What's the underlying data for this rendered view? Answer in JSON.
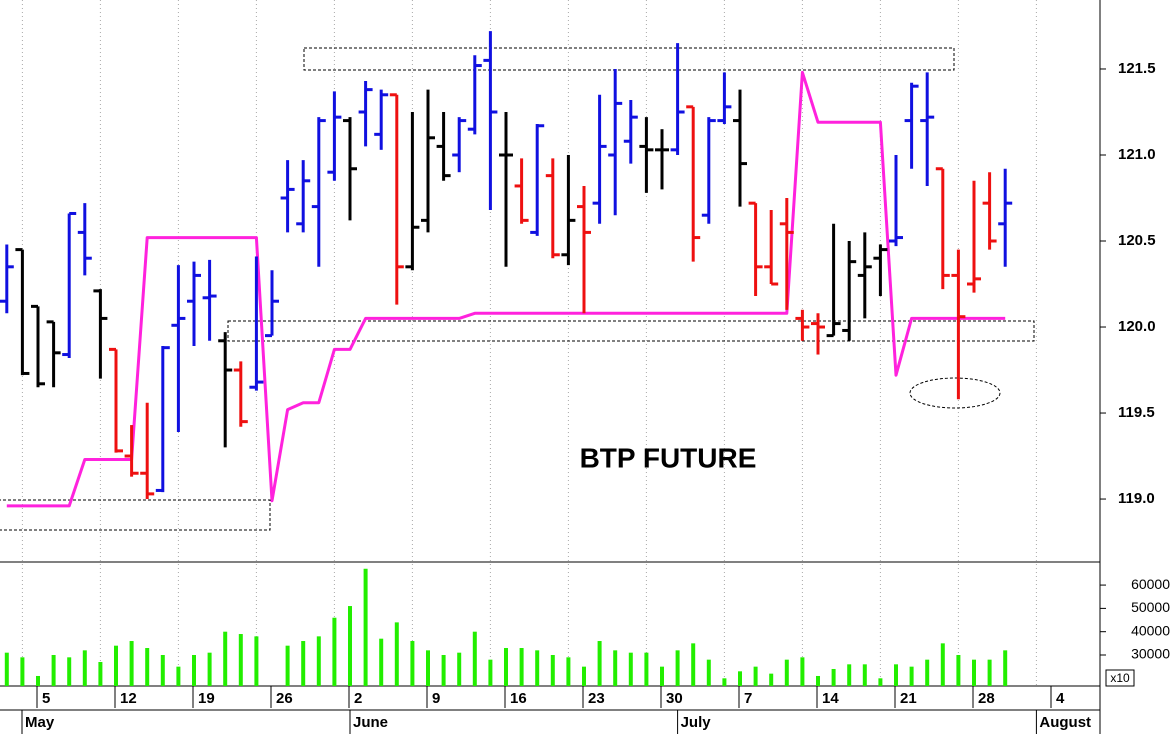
{
  "chart_data": [
    {
      "type": "ohlc",
      "title": "BTP FUTURE",
      "categories": [
        null,
        null,
        "5",
        null,
        null,
        null,
        null,
        "12",
        null,
        null,
        null,
        null,
        "19",
        null,
        null,
        null,
        null,
        "26",
        null,
        null,
        null,
        null,
        "2",
        null,
        null,
        null,
        null,
        "9",
        null,
        null,
        null,
        null,
        "16",
        null,
        null,
        null,
        null,
        "23",
        null,
        null,
        null,
        null,
        "30",
        null,
        null,
        null,
        null,
        "7",
        null,
        null,
        null,
        null,
        "14",
        null,
        null,
        null,
        null,
        "21",
        null,
        null,
        null,
        null,
        "28",
        null,
        null,
        null,
        null,
        "4",
        null,
        null
      ],
      "month_labels": [
        "May",
        null,
        null,
        null,
        null,
        null,
        null,
        null,
        null,
        null,
        null,
        null,
        null,
        null,
        null,
        null,
        null,
        null,
        null,
        null,
        null,
        null,
        "June",
        null,
        null,
        null,
        null,
        null,
        null,
        null,
        null,
        null,
        null,
        null,
        null,
        null,
        null,
        null,
        null,
        null,
        null,
        null,
        null,
        "July",
        null,
        null,
        null,
        null,
        null,
        null,
        null,
        null,
        null,
        null,
        null,
        null,
        null,
        null,
        null,
        null,
        null,
        null,
        null,
        null,
        null,
        null,
        "August",
        null,
        null,
        null
      ],
      "open": [
        120.15,
        120.45,
        120.12,
        120.03,
        119.84,
        120.55,
        120.21,
        119.87,
        119.25,
        119.15,
        119.05,
        120.01,
        120.15,
        120.17,
        119.92,
        119.75,
        119.65,
        119.95,
        120.75,
        120.6,
        120.7,
        120.9,
        121.2,
        121.25,
        121.12,
        121.35,
        120.35,
        120.62,
        121.05,
        121.0,
        121.15,
        121.55,
        121.0,
        120.82,
        120.55,
        120.88,
        120.42,
        120.7,
        120.72,
        121.0,
        121.08,
        121.05,
        121.03,
        121.03,
        121.28,
        120.65,
        121.2,
        121.2,
        120.72,
        120.35,
        120.6,
        120.05,
        120.02,
        119.95,
        119.98,
        120.3,
        120.4,
        120.5,
        121.2,
        121.2,
        120.92,
        120.3,
        120.25,
        120.72,
        120.6,
        null,
        null,
        null,
        null,
        null
      ],
      "high": [
        120.48,
        120.45,
        120.12,
        120.03,
        120.66,
        120.72,
        120.22,
        119.87,
        119.43,
        119.56,
        119.89,
        120.36,
        120.38,
        120.39,
        119.97,
        119.8,
        120.41,
        120.33,
        120.97,
        120.97,
        121.22,
        121.37,
        121.22,
        121.43,
        121.38,
        121.35,
        121.25,
        121.38,
        121.25,
        121.22,
        121.58,
        121.72,
        121.25,
        120.98,
        121.18,
        120.98,
        121.0,
        120.82,
        121.35,
        121.5,
        121.32,
        121.22,
        121.15,
        121.65,
        121.28,
        121.22,
        121.48,
        121.38,
        120.72,
        120.68,
        120.75,
        120.1,
        120.08,
        120.6,
        120.5,
        120.55,
        120.48,
        121.0,
        121.42,
        121.48,
        120.92,
        120.45,
        120.85,
        120.9,
        120.92,
        null,
        null,
        null,
        null,
        null
      ],
      "low": [
        120.08,
        119.72,
        119.65,
        119.65,
        119.82,
        120.3,
        119.7,
        119.27,
        119.13,
        119.0,
        119.04,
        119.39,
        119.89,
        119.92,
        119.3,
        119.42,
        119.63,
        119.95,
        120.55,
        120.55,
        120.35,
        120.85,
        120.62,
        121.05,
        121.03,
        120.13,
        120.33,
        120.55,
        120.85,
        120.9,
        121.12,
        120.68,
        120.35,
        120.6,
        120.53,
        120.4,
        120.36,
        120.08,
        120.6,
        120.65,
        120.95,
        120.78,
        120.8,
        121.0,
        120.38,
        120.6,
        121.18,
        120.7,
        120.18,
        120.25,
        120.1,
        119.92,
        119.84,
        119.95,
        119.92,
        120.05,
        120.18,
        120.47,
        120.92,
        120.82,
        120.22,
        119.58,
        120.2,
        120.45,
        120.35,
        null,
        null,
        null,
        null,
        null
      ],
      "close": [
        120.35,
        119.73,
        119.67,
        119.85,
        120.66,
        120.4,
        120.05,
        119.28,
        119.15,
        119.03,
        119.88,
        120.05,
        120.3,
        120.18,
        119.75,
        119.45,
        119.68,
        120.15,
        120.8,
        120.85,
        121.2,
        121.22,
        120.92,
        121.38,
        121.35,
        120.35,
        120.58,
        121.1,
        120.88,
        121.2,
        121.52,
        121.25,
        121.0,
        120.62,
        121.17,
        120.42,
        120.62,
        120.55,
        121.05,
        121.3,
        121.22,
        121.03,
        121.03,
        121.25,
        120.52,
        121.2,
        121.28,
        120.95,
        120.35,
        120.25,
        120.55,
        120.0,
        120.0,
        120.02,
        120.38,
        120.35,
        120.45,
        120.52,
        121.4,
        121.22,
        120.3,
        120.06,
        120.28,
        120.5,
        120.72,
        null,
        null,
        null,
        null,
        null
      ],
      "bar_colors": [
        "#1010e0",
        "#000000",
        "#000000",
        "#000000",
        "#1010e0",
        "#1010e0",
        "#000000",
        "#ee1010",
        "#ee1010",
        "#ee1010",
        "#1010e0",
        "#1010e0",
        "#1010e0",
        "#1010e0",
        "#000000",
        "#ee1010",
        "#1010e0",
        "#1010e0",
        "#1010e0",
        "#1010e0",
        "#1010e0",
        "#1010e0",
        "#000000",
        "#1010e0",
        "#1010e0",
        "#ee1010",
        "#000000",
        "#000000",
        "#000000",
        "#1010e0",
        "#1010e0",
        "#1010e0",
        "#000000",
        "#ee1010",
        "#1010e0",
        "#ee1010",
        "#000000",
        "#ee1010",
        "#1010e0",
        "#1010e0",
        "#1010e0",
        "#000000",
        "#000000",
        "#1010e0",
        "#ee1010",
        "#1010e0",
        "#1010e0",
        "#000000",
        "#ee1010",
        "#ee1010",
        "#ee1010",
        "#ee1010",
        "#ee1010",
        "#000000",
        "#000000",
        "#000000",
        "#000000",
        "#1010e0",
        "#1010e0",
        "#1010e0",
        "#ee1010",
        "#ee1010",
        "#ee1010",
        "#ee1010",
        "#1010e0",
        null,
        null,
        null,
        null,
        null
      ],
      "line": {
        "color": "#ff22dd",
        "values": [
          118.96,
          118.96,
          118.96,
          118.96,
          118.96,
          119.23,
          119.23,
          119.23,
          119.23,
          120.52,
          120.52,
          120.52,
          120.52,
          120.52,
          120.52,
          120.52,
          120.52,
          118.99,
          119.52,
          119.56,
          119.56,
          119.87,
          119.87,
          120.05,
          120.05,
          120.05,
          120.05,
          120.05,
          120.05,
          120.05,
          120.08,
          120.08,
          120.08,
          120.08,
          120.08,
          120.08,
          120.08,
          120.08,
          120.08,
          120.08,
          120.08,
          120.08,
          120.08,
          120.08,
          120.08,
          120.08,
          120.08,
          120.08,
          120.08,
          120.08,
          120.08,
          121.48,
          121.19,
          121.19,
          121.19,
          121.19,
          121.19,
          119.72,
          120.05,
          120.05,
          120.05,
          120.05,
          120.05,
          120.05,
          120.05,
          null,
          null,
          null,
          null,
          null
        ]
      },
      "ylim": [
        118.634,
        121.901
      ],
      "yticks": [
        {
          "value": 119,
          "label": "119.0"
        },
        119.5,
        {
          "value": 120,
          "label": "120.0"
        },
        120.5,
        {
          "value": 121,
          "label": "121.0"
        },
        121.5
      ],
      "grid": true
    },
    {
      "type": "bar",
      "unit_label": "x10",
      "color": "#22ee00",
      "values": [
        31000,
        29000,
        21000,
        30000,
        29000,
        32000,
        27000,
        34000,
        36000,
        33000,
        30000,
        25000,
        30000,
        31000,
        40000,
        39000,
        38000,
        null,
        34000,
        36000,
        38000,
        46000,
        51000,
        67000,
        37000,
        44000,
        36000,
        32000,
        30000,
        31000,
        40000,
        28000,
        33000,
        33000,
        32000,
        30000,
        29000,
        25000,
        36000,
        32000,
        31000,
        31000,
        25000,
        32000,
        35000,
        28000,
        20000,
        23000,
        25000,
        22000,
        28000,
        29000,
        21000,
        24000,
        26000,
        26000,
        20000,
        26000,
        25000,
        28000,
        35000,
        30000,
        28000,
        28000,
        32000,
        null,
        null,
        null,
        null,
        null
      ],
      "ylim": [
        16700,
        69900
      ],
      "yticks": [
        30000,
        40000,
        50000,
        60000
      ]
    }
  ]
}
